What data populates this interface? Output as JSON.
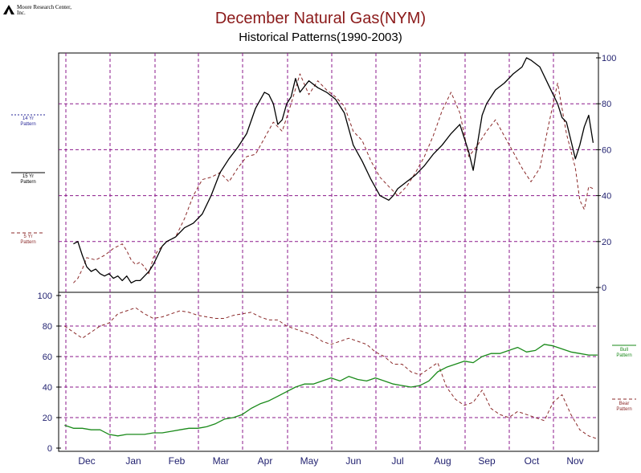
{
  "header": {
    "logo_text": "Moore Research Center, Inc.",
    "title": "December Natural Gas(NYM)",
    "subtitle": "Historical Patterns(1990-2003)"
  },
  "colors": {
    "title": "#8b1a1a",
    "grid": "#8b1a8b",
    "pattern14": "#2a2a9a",
    "pattern15": "#000000",
    "pattern5": "#8b2a2a",
    "bull": "#1a8a1a",
    "bear": "#8b2a2a",
    "axis_text": "#1f1f6e"
  },
  "chart_data": [
    {
      "type": "line",
      "name": "seasonal-patterns",
      "x_type": "month-position",
      "categories": [
        "Dec",
        "Jan",
        "Feb",
        "Mar",
        "Apr",
        "May",
        "Jun",
        "Jul",
        "Aug",
        "Sep",
        "Oct",
        "Nov"
      ],
      "ylim": [
        0,
        100
      ],
      "yticks": [
        0,
        20,
        40,
        60,
        80,
        100
      ],
      "y_axis_side": "right",
      "grid": true,
      "legend": "left",
      "series": [
        {
          "name": "15 Yr Pattern",
          "label_lines": [
            "15 Yr",
            "Pattern"
          ],
          "style": "solid",
          "x": [
            -0.3,
            -0.2,
            -0.1,
            0.0,
            0.1,
            0.2,
            0.3,
            0.4,
            0.5,
            0.6,
            0.7,
            0.8,
            0.9,
            1.0,
            1.1,
            1.2,
            1.3,
            1.4,
            1.5,
            1.6,
            1.7,
            1.8,
            1.9,
            2.0,
            2.2,
            2.4,
            2.6,
            2.8,
            3.0,
            3.2,
            3.4,
            3.6,
            3.8,
            4.0,
            4.1,
            4.2,
            4.3,
            4.4,
            4.5,
            4.6,
            4.7,
            4.8,
            5.0,
            5.2,
            5.4,
            5.6,
            5.8,
            6.0,
            6.2,
            6.4,
            6.6,
            6.8,
            6.9,
            7.0,
            7.2,
            7.4,
            7.6,
            7.8,
            8.0,
            8.2,
            8.4,
            8.6,
            8.7,
            8.8,
            8.9,
            9.0,
            9.2,
            9.4,
            9.6,
            9.8,
            9.9,
            10.0,
            10.2,
            10.4,
            10.6,
            10.7,
            10.8,
            10.9,
            11.0,
            11.1,
            11.2,
            11.3,
            11.4
          ],
          "values": [
            19,
            20,
            14,
            9,
            7,
            8,
            6,
            5,
            6,
            4,
            5,
            3,
            5,
            2,
            3,
            3,
            5,
            7,
            10,
            14,
            18,
            20,
            21,
            22,
            26,
            28,
            32,
            40,
            50,
            56,
            61,
            67,
            78,
            85,
            84,
            80,
            71,
            73,
            80,
            83,
            91,
            85,
            90,
            87,
            85,
            82,
            76,
            62,
            55,
            47,
            40,
            38,
            40,
            43,
            46,
            49,
            53,
            58,
            62,
            67,
            71,
            59,
            51,
            63,
            75,
            80,
            86,
            89,
            93,
            96,
            100,
            99,
            96,
            88,
            80,
            74,
            72,
            64,
            56,
            62,
            70,
            75,
            63
          ]
        },
        {
          "name": "5 Yr Pattern",
          "label_lines": [
            "5 Yr",
            "Pattern"
          ],
          "style": "dashed",
          "x": [
            -0.3,
            -0.2,
            -0.1,
            0.0,
            0.2,
            0.4,
            0.6,
            0.8,
            0.9,
            1.0,
            1.1,
            1.2,
            1.3,
            1.4,
            1.5,
            1.6,
            1.8,
            2.0,
            2.2,
            2.4,
            2.6,
            2.8,
            3.0,
            3.2,
            3.4,
            3.6,
            3.8,
            4.0,
            4.2,
            4.4,
            4.6,
            4.8,
            5.0,
            5.2,
            5.4,
            5.6,
            5.8,
            6.0,
            6.2,
            6.4,
            6.6,
            6.8,
            7.0,
            7.2,
            7.4,
            7.6,
            7.8,
            8.0,
            8.2,
            8.4,
            8.6,
            8.8,
            9.0,
            9.2,
            9.4,
            9.6,
            9.8,
            10.0,
            10.2,
            10.4,
            10.6,
            10.8,
            11.0,
            11.1,
            11.2,
            11.3,
            11.4
          ],
          "values": [
            2,
            4,
            8,
            13,
            12,
            14,
            17,
            19,
            16,
            12,
            10,
            11,
            9,
            6,
            13,
            16,
            20,
            22,
            30,
            40,
            47,
            48,
            50,
            46,
            52,
            57,
            58,
            65,
            72,
            68,
            80,
            93,
            84,
            90,
            86,
            83,
            79,
            68,
            64,
            55,
            48,
            44,
            40,
            44,
            50,
            57,
            66,
            77,
            85,
            76,
            57,
            62,
            68,
            73,
            66,
            59,
            52,
            46,
            52,
            71,
            89,
            67,
            52,
            38,
            34,
            44,
            43
          ]
        },
        {
          "name": "14 Yr Pattern",
          "label_lines": [
            "14 Yr",
            "Pattern"
          ],
          "style": "dotted",
          "x": [],
          "values": []
        }
      ]
    },
    {
      "type": "line",
      "name": "bull-bear",
      "x_type": "month-position",
      "categories": [
        "Dec",
        "Jan",
        "Feb",
        "Mar",
        "Apr",
        "May",
        "Jun",
        "Jul",
        "Aug",
        "Sep",
        "Oct",
        "Nov"
      ],
      "ylim": [
        0,
        100
      ],
      "yticks": [
        0,
        20,
        40,
        60,
        80,
        100
      ],
      "y_axis_side": "left",
      "grid": true,
      "legend": "right",
      "series": [
        {
          "name": "Bull Pattern",
          "label_lines": [
            "Bull",
            "Pattern"
          ],
          "style": "solid",
          "x": [
            -0.5,
            -0.3,
            -0.1,
            0.1,
            0.3,
            0.5,
            0.7,
            0.9,
            1.1,
            1.3,
            1.5,
            1.7,
            1.9,
            2.1,
            2.3,
            2.5,
            2.7,
            2.9,
            3.1,
            3.3,
            3.5,
            3.7,
            3.9,
            4.1,
            4.3,
            4.5,
            4.7,
            4.9,
            5.1,
            5.3,
            5.5,
            5.7,
            5.9,
            6.1,
            6.3,
            6.5,
            6.7,
            6.9,
            7.1,
            7.3,
            7.5,
            7.7,
            7.9,
            8.1,
            8.3,
            8.5,
            8.7,
            8.9,
            9.1,
            9.3,
            9.5,
            9.7,
            9.9,
            10.1,
            10.3,
            10.5,
            10.7,
            10.9,
            11.1,
            11.3,
            11.5
          ],
          "values": [
            15,
            13,
            13,
            12,
            12,
            9,
            8,
            9,
            9,
            9,
            10,
            10,
            11,
            12,
            13,
            13,
            14,
            16,
            19,
            20,
            22,
            26,
            29,
            31,
            34,
            37,
            40,
            42,
            42,
            44,
            46,
            44,
            47,
            45,
            44,
            46,
            44,
            42,
            41,
            40,
            41,
            44,
            50,
            53,
            55,
            57,
            56,
            60,
            62,
            62,
            64,
            66,
            63,
            64,
            68,
            67,
            65,
            63,
            62,
            61,
            61
          ]
        },
        {
          "name": "Bear Pattern",
          "label_lines": [
            "Bear",
            "Pattern"
          ],
          "style": "dashed",
          "x": [
            -0.5,
            -0.3,
            -0.1,
            0.1,
            0.3,
            0.5,
            0.7,
            0.9,
            1.1,
            1.3,
            1.5,
            1.7,
            1.9,
            2.1,
            2.3,
            2.5,
            2.7,
            2.9,
            3.1,
            3.3,
            3.5,
            3.7,
            3.9,
            4.1,
            4.3,
            4.5,
            4.7,
            4.9,
            5.1,
            5.3,
            5.5,
            5.7,
            5.9,
            6.1,
            6.3,
            6.5,
            6.7,
            6.9,
            7.1,
            7.3,
            7.5,
            7.7,
            7.9,
            8.1,
            8.3,
            8.5,
            8.7,
            8.9,
            9.1,
            9.3,
            9.5,
            9.7,
            9.9,
            10.1,
            10.3,
            10.5,
            10.7,
            10.9,
            11.1,
            11.3,
            11.5
          ],
          "values": [
            80,
            76,
            72,
            76,
            80,
            82,
            88,
            90,
            92,
            88,
            85,
            86,
            88,
            90,
            89,
            87,
            86,
            85,
            85,
            87,
            88,
            89,
            86,
            84,
            84,
            80,
            78,
            76,
            74,
            70,
            68,
            70,
            72,
            70,
            68,
            63,
            60,
            55,
            55,
            50,
            48,
            52,
            56,
            40,
            32,
            28,
            30,
            38,
            26,
            22,
            20,
            24,
            22,
            20,
            18,
            30,
            35,
            22,
            12,
            8,
            6
          ]
        }
      ]
    }
  ]
}
